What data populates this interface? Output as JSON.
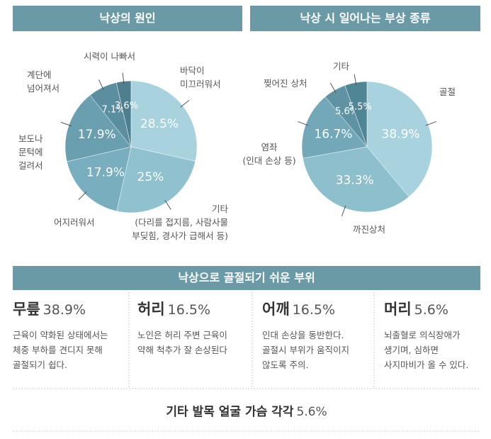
{
  "chart_data": [
    {
      "type": "pie",
      "title": "낙상의 원인",
      "categories": [
        "바닥이\n미끄러워서",
        "기타\n(다리를 접지름, 사람사물\n부딪힘, 경사가 급해서 등)",
        "어지러워서",
        "보도나\n문턱에\n걸려서",
        "계단에\n넘어져서",
        "시력이 나빠서"
      ],
      "values": [
        28.5,
        25,
        17.9,
        17.9,
        7.1,
        3.6
      ],
      "value_labels": [
        "28.5%",
        "25%",
        "17.9%",
        "17.9%",
        "7.1%",
        "3.6%"
      ],
      "colors": [
        "#a8d2de",
        "#8fc1cf",
        "#78aebe",
        "#6a9fb0",
        "#5b8f9f",
        "#4d7f8f"
      ]
    },
    {
      "type": "pie",
      "title": "낙상 시 일어나는 부상 종류",
      "categories": [
        "골절",
        "까진상처",
        "염좌\n(인대 손상 등)",
        "찢어진 상처",
        "기타"
      ],
      "values": [
        38.9,
        33.3,
        16.7,
        5.6,
        5.5
      ],
      "value_labels": [
        "38.9%",
        "33.3%",
        "16.7%",
        "5.6%",
        "5.5%"
      ],
      "colors": [
        "#a8d2de",
        "#8dbfcc",
        "#72a8b8",
        "#5f93a3",
        "#508595"
      ]
    }
  ],
  "parts": {
    "title": "낙상으로 골절되기 쉬운 부위",
    "items": [
      {
        "name": "무릎",
        "share": "38.9%",
        "text": "근육이 약화된 상태에서는\n체중 부하를 견디지 못해\n골절되기 쉽다."
      },
      {
        "name": "허리",
        "share": "16.5%",
        "text": "노인은 허리 주변 근육이\n약해 척추가 잘 손상된다"
      },
      {
        "name": "어깨",
        "share": "16.5%",
        "text": "인대 손상을 동반한다.\n골절시 부위가 움직이지\n않도록 주의."
      },
      {
        "name": "머리",
        "share": "5.6%",
        "text": "뇌출혈로 의식장애가\n생기며, 심하면\n사지마비가 올 수 있다."
      }
    ],
    "other": {
      "name": "기타 발목 얼굴 가슴 각각",
      "share": "5.6%"
    }
  }
}
